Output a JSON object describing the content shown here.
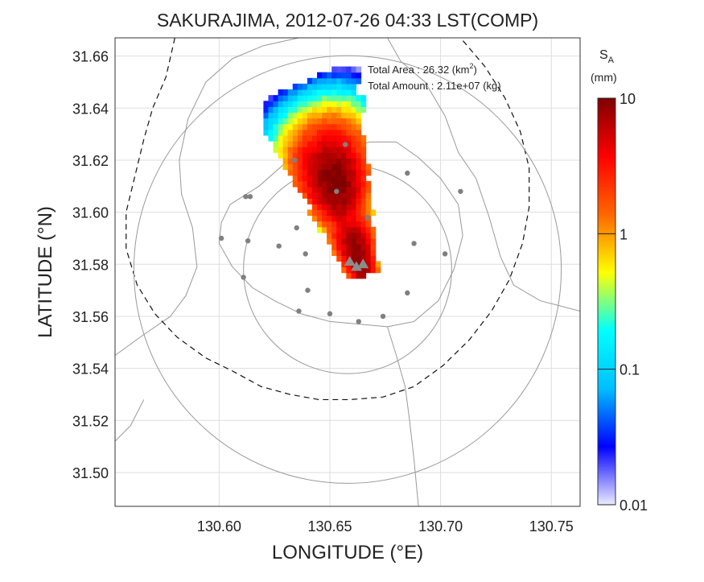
{
  "chart_data": {
    "type": "heatmap",
    "title": "SAKURAJIMA, 2012-07-26 04:33 LST(COMP)",
    "xlabel": "LONGITUDE (°E)",
    "ylabel": "LATITUDE (°N)",
    "xlim": [
      130.553,
      130.763
    ],
    "ylim": [
      31.487,
      31.667
    ],
    "x_ticks": [
      "130.60",
      "130.65",
      "130.70",
      "130.75"
    ],
    "y_ticks": [
      "31.50",
      "31.52",
      "31.54",
      "31.56",
      "31.58",
      "31.60",
      "31.62",
      "31.64",
      "31.66"
    ],
    "grid": true,
    "annotations": {
      "area_label": "Total Area   : 26.32 (km",
      "area_sup": "2",
      "area_tail": ")",
      "amount_label": "Total Amount : 2.11e+07 (kg)"
    },
    "colorbar": {
      "label_main": "S",
      "label_sub": "A",
      "unit": "(mm)",
      "scale": "log",
      "range": [
        0.01,
        10
      ],
      "ticks": [
        "10",
        "1",
        "0.1",
        "0.01"
      ],
      "colors": [
        "#ecebff",
        "#0000ff",
        "#00bfff",
        "#00ffff",
        "#ffff00",
        "#ff6600",
        "#ff0000",
        "#7f0000"
      ]
    },
    "deposit_profile": {
      "description_free": true,
      "vent": [
        130.664,
        31.576
      ],
      "far_end": [
        130.637,
        31.649
      ],
      "width_near": 0.007,
      "width_far": 0.026,
      "peaks": [
        {
          "t": 0.08,
          "value": 9
        },
        {
          "t": 0.48,
          "value": 10
        }
      ],
      "tail_value": 0.02
    },
    "vents": [
      [
        130.659,
        31.581
      ],
      [
        130.662,
        31.579
      ],
      [
        130.665,
        31.58
      ]
    ],
    "stations": [
      [
        130.657,
        31.626
      ],
      [
        130.685,
        31.615
      ],
      [
        130.634,
        31.62
      ],
      [
        130.614,
        31.606
      ],
      [
        130.612,
        31.606
      ],
      [
        130.709,
        31.608
      ],
      [
        130.601,
        31.59
      ],
      [
        130.613,
        31.589
      ],
      [
        130.627,
        31.587
      ],
      [
        130.635,
        31.594
      ],
      [
        130.639,
        31.584
      ],
      [
        130.653,
        31.608
      ],
      [
        130.667,
        31.598
      ],
      [
        130.688,
        31.588
      ],
      [
        130.702,
        31.584
      ],
      [
        130.611,
        31.575
      ],
      [
        130.64,
        31.57
      ],
      [
        130.636,
        31.562
      ],
      [
        130.65,
        31.561
      ],
      [
        130.663,
        31.558
      ],
      [
        130.674,
        31.56
      ],
      [
        130.685,
        31.569
      ]
    ],
    "range_rings": [
      {
        "center": [
          130.658,
          31.578
        ],
        "radius_deg": 0.047
      },
      {
        "center": [
          130.658,
          31.578
        ],
        "radius_deg": 0.0965
      }
    ],
    "dashed_boundary": [
      [
        130.58,
        31.667
      ],
      [
        130.576,
        31.652
      ],
      [
        130.57,
        31.64
      ],
      [
        130.566,
        31.628
      ],
      [
        130.562,
        31.614
      ],
      [
        130.558,
        31.6
      ],
      [
        130.558,
        31.586
      ],
      [
        130.563,
        31.572
      ],
      [
        130.571,
        31.561
      ],
      [
        130.581,
        31.552
      ],
      [
        130.594,
        31.544
      ],
      [
        130.606,
        31.539
      ],
      [
        130.619,
        31.533
      ],
      [
        130.632,
        31.53
      ],
      [
        130.645,
        31.528
      ],
      [
        130.659,
        31.528
      ],
      [
        130.674,
        31.529
      ],
      [
        130.688,
        31.533
      ],
      [
        130.701,
        31.541
      ],
      [
        130.713,
        31.551
      ],
      [
        130.723,
        31.562
      ],
      [
        130.731,
        31.574
      ],
      [
        130.737,
        31.588
      ],
      [
        130.74,
        31.602
      ],
      [
        130.74,
        31.617
      ],
      [
        130.736,
        31.631
      ],
      [
        130.729,
        31.644
      ],
      [
        130.72,
        31.656
      ],
      [
        130.709,
        31.667
      ]
    ],
    "coastlines": [
      [
        [
          130.605,
          31.603
        ],
        [
          130.618,
          31.61
        ],
        [
          130.63,
          31.619
        ],
        [
          130.642,
          31.626
        ],
        [
          130.655,
          31.624
        ],
        [
          130.668,
          31.627
        ],
        [
          130.68,
          31.627
        ],
        [
          130.69,
          31.621
        ],
        [
          130.7,
          31.613
        ],
        [
          130.708,
          31.603
        ],
        [
          130.71,
          31.591
        ],
        [
          130.706,
          31.578
        ],
        [
          130.699,
          31.566
        ],
        [
          130.688,
          31.558
        ],
        [
          130.676,
          31.556
        ],
        [
          130.663,
          31.557
        ],
        [
          130.65,
          31.558
        ],
        [
          130.637,
          31.561
        ],
        [
          130.625,
          31.566
        ],
        [
          130.615,
          31.571
        ],
        [
          130.606,
          31.579
        ],
        [
          130.6,
          31.588
        ],
        [
          130.601,
          31.596
        ],
        [
          130.605,
          31.603
        ]
      ],
      [
        [
          130.553,
          31.545
        ],
        [
          130.566,
          31.553
        ],
        [
          130.578,
          31.56
        ],
        [
          130.585,
          31.568
        ],
        [
          130.59,
          31.579
        ],
        [
          130.588,
          31.594
        ],
        [
          130.583,
          31.607
        ],
        [
          130.582,
          31.62
        ],
        [
          130.586,
          31.636
        ],
        [
          130.594,
          31.65
        ],
        [
          130.606,
          31.659
        ],
        [
          130.62,
          31.664
        ],
        [
          130.636,
          31.667
        ]
      ],
      [
        [
          130.676,
          31.667
        ],
        [
          130.682,
          31.658
        ],
        [
          130.693,
          31.65
        ],
        [
          130.702,
          31.637
        ],
        [
          130.708,
          31.623
        ],
        [
          130.716,
          31.613
        ],
        [
          130.722,
          31.598
        ],
        [
          130.727,
          31.583
        ],
        [
          130.733,
          31.572
        ],
        [
          130.745,
          31.566
        ],
        [
          130.763,
          31.562
        ]
      ],
      [
        [
          130.676,
          31.556
        ],
        [
          130.68,
          31.545
        ],
        [
          130.684,
          31.533
        ],
        [
          130.686,
          31.52
        ],
        [
          130.688,
          31.505
        ],
        [
          130.69,
          31.487
        ]
      ],
      [
        [
          130.553,
          31.512
        ],
        [
          130.56,
          31.518
        ],
        [
          130.566,
          31.528
        ]
      ]
    ]
  }
}
